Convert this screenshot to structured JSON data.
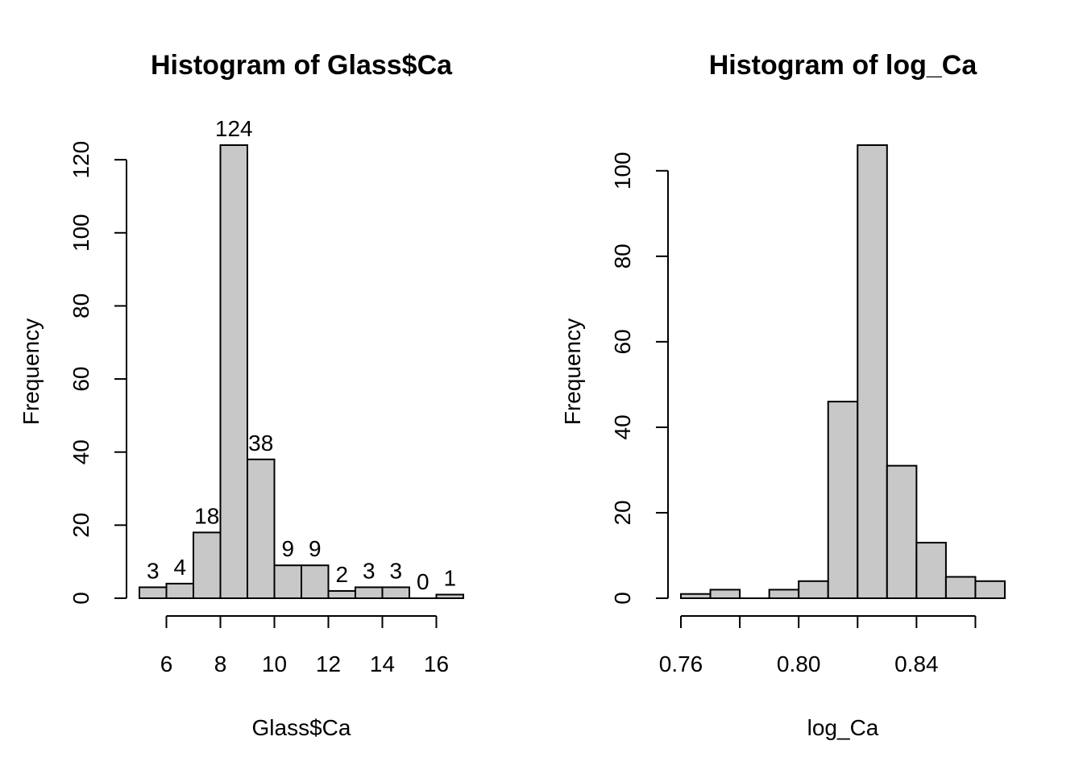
{
  "colors": {
    "bar_fill": "#c8c8c8",
    "stroke": "#000000",
    "background": "#ffffff"
  },
  "chart_data": [
    {
      "type": "bar",
      "title": "Histogram of Glass$Ca",
      "xlabel": "Glass$Ca",
      "ylabel": "Frequency",
      "bin_edges": [
        5,
        6,
        7,
        8,
        9,
        10,
        11,
        12,
        13,
        14,
        15,
        16,
        17
      ],
      "values": [
        3,
        4,
        18,
        124,
        38,
        9,
        9,
        2,
        3,
        3,
        0,
        1
      ],
      "data_labels": [
        "3",
        "4",
        "18",
        "124",
        "38",
        "9",
        "9",
        "2",
        "3",
        "3",
        "0",
        "1"
      ],
      "xticks": [
        6,
        8,
        10,
        12,
        14,
        16
      ],
      "xtick_labels": [
        "6",
        "8",
        "10",
        "12",
        "14",
        "16"
      ],
      "yticks": [
        0,
        20,
        40,
        60,
        80,
        100,
        120
      ],
      "ytick_labels": [
        "0",
        "20",
        "40",
        "60",
        "80",
        "100",
        "120"
      ],
      "xlim": [
        5,
        17
      ],
      "ylim": [
        0,
        124
      ],
      "grid": false,
      "legend": "none"
    },
    {
      "type": "bar",
      "title": "Histogram of log_Ca",
      "xlabel": "log_Ca",
      "ylabel": "Frequency",
      "bin_edges": [
        0.76,
        0.77,
        0.78,
        0.79,
        0.8,
        0.81,
        0.82,
        0.83,
        0.84,
        0.85,
        0.86,
        0.87
      ],
      "values": [
        1,
        2,
        0,
        2,
        4,
        46,
        106,
        31,
        13,
        5,
        4
      ],
      "xticks": [
        0.76,
        0.78,
        0.8,
        0.82,
        0.84,
        0.86
      ],
      "xtick_labels": [
        "0.76",
        "",
        "0.80",
        "",
        "0.84",
        ""
      ],
      "yticks": [
        0,
        20,
        40,
        60,
        80,
        100
      ],
      "ytick_labels": [
        "0",
        "20",
        "40",
        "60",
        "80",
        "100"
      ],
      "xlim": [
        0.76,
        0.87
      ],
      "ylim": [
        0,
        106
      ],
      "grid": false,
      "legend": "none"
    }
  ]
}
